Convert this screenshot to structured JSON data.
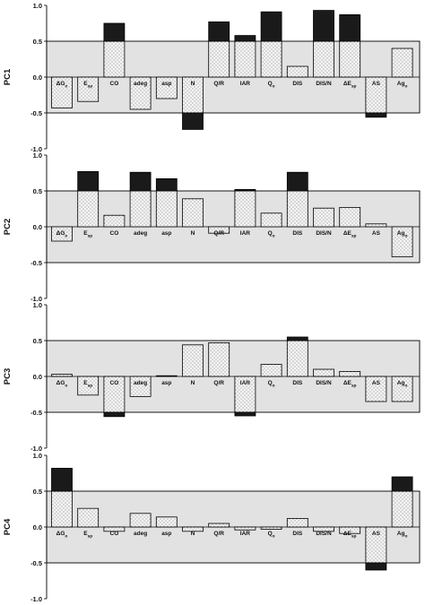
{
  "chart_data": {
    "type": "bar",
    "ylim": [
      -1.0,
      1.0
    ],
    "yticks": [
      "1.0",
      "0.5",
      "0.0",
      "-0.5",
      "-1.0"
    ],
    "shaded_band": [
      -0.5,
      0.5
    ],
    "threshold": 0.5,
    "colors": {
      "band": "#e2e2e2",
      "bar_fill": "#f4f4f4",
      "bar_dots": "#666666",
      "excess": "#1a1a1a",
      "stroke": "#000000"
    },
    "categories": [
      {
        "main": "ΔG",
        "sub": "o"
      },
      {
        "main": "E",
        "sub": "sp"
      },
      {
        "main": "CO",
        "sub": ""
      },
      {
        "main": "adeg",
        "sub": ""
      },
      {
        "main": "asp",
        "sub": ""
      },
      {
        "main": "N",
        "sub": ""
      },
      {
        "main": "Q/R",
        "sub": ""
      },
      {
        "main": "IAR",
        "sub": ""
      },
      {
        "main": "Q",
        "sub": "o"
      },
      {
        "main": "DIS",
        "sub": ""
      },
      {
        "main": "DIS/N",
        "sub": ""
      },
      {
        "main": "ΔE",
        "sub": "sp"
      },
      {
        "main": "AS",
        "sub": ""
      },
      {
        "main": "Ag",
        "sub": "o"
      }
    ],
    "panels": [
      {
        "ylabel": "PC1",
        "values": [
          -0.43,
          -0.34,
          0.75,
          -0.45,
          -0.3,
          -0.73,
          0.77,
          0.58,
          0.91,
          0.15,
          0.93,
          0.87,
          -0.56,
          0.4
        ]
      },
      {
        "ylabel": "PC2",
        "values": [
          -0.2,
          0.77,
          0.16,
          0.76,
          0.67,
          0.39,
          -0.09,
          0.52,
          0.19,
          0.76,
          0.26,
          0.27,
          0.04,
          -0.42
        ]
      },
      {
        "ylabel": "PC3",
        "values": [
          0.03,
          -0.26,
          -0.56,
          -0.28,
          0.01,
          0.44,
          0.47,
          -0.55,
          0.17,
          0.55,
          0.1,
          0.07,
          -0.35,
          -0.35
        ]
      },
      {
        "ylabel": "PC4",
        "values": [
          0.82,
          0.26,
          -0.06,
          0.19,
          0.14,
          -0.06,
          0.05,
          -0.04,
          -0.03,
          0.12,
          -0.06,
          -0.09,
          -0.6,
          0.7
        ]
      }
    ]
  }
}
